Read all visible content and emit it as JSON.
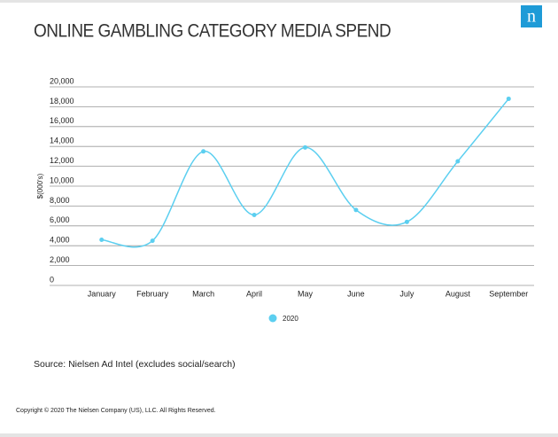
{
  "logo": "n",
  "chart_data": {
    "type": "line",
    "title": "ONLINE GAMBLING CATEGORY MEDIA SPEND",
    "y_label": "$(000's)",
    "categories": [
      "January",
      "February",
      "March",
      "April",
      "May",
      "June",
      "July",
      "August",
      "September"
    ],
    "series": [
      {
        "name": "2020",
        "color": "#5ccff0",
        "values": [
          4600,
          4500,
          13500,
          7100,
          13900,
          7600,
          6400,
          12500,
          18800
        ]
      }
    ],
    "ylim": [
      0,
      20000
    ],
    "yticks": [
      0,
      {
        "value": 2000,
        "label": "2,000"
      },
      {
        "value": 4000,
        "label": "4,000"
      },
      {
        "value": 6000,
        "label": "6,000"
      },
      {
        "value": 8000,
        "label": "8,000"
      },
      {
        "value": 10000,
        "label": "10,000"
      },
      {
        "value": 12000,
        "label": "12,000"
      },
      {
        "value": 14000,
        "label": "14,000"
      },
      {
        "value": 16000,
        "label": "16,000"
      },
      {
        "value": 18000,
        "label": "18,000"
      },
      {
        "value": 20000,
        "label": "20,000"
      }
    ],
    "grid": true,
    "smooth": true,
    "legend": "bottom"
  },
  "source": "Source: Nielsen Ad Intel (excludes social/search)",
  "copyright": "Copyright © 2020 The Nielsen Company (US), LLC. All Rights Reserved."
}
